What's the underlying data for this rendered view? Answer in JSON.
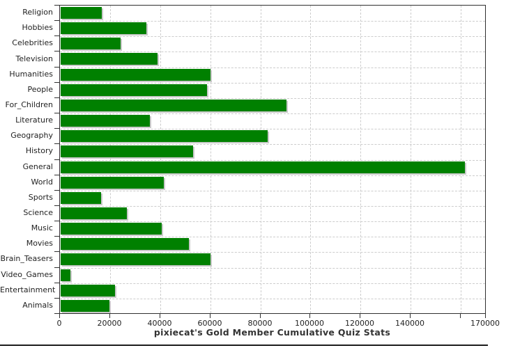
{
  "chart_data": {
    "type": "bar",
    "orientation": "horizontal",
    "title": "pixiecat's Gold Member Cumulative Quiz Stats",
    "categories": [
      "Religion",
      "Hobbies",
      "Celebrities",
      "Television",
      "Humanities",
      "People",
      "For_Children",
      "Literature",
      "Geography",
      "History",
      "General",
      "World",
      "Sports",
      "Science",
      "Music",
      "Movies",
      "Brain_Teasers",
      "Video_Games",
      "Entertainment",
      "Animals"
    ],
    "values": [
      16300,
      34200,
      24000,
      38700,
      59900,
      58500,
      90100,
      35600,
      82700,
      52900,
      161400,
      41200,
      16000,
      26400,
      40300,
      51300,
      59700,
      3800,
      21800,
      19600
    ],
    "xlabel": "",
    "ylabel": "",
    "xlim": [
      0,
      170000
    ],
    "x_ticks": [
      {
        "value": 0,
        "label": "0"
      },
      {
        "value": 20000,
        "label": "20000"
      },
      {
        "value": 40000,
        "label": "40000"
      },
      {
        "value": 60000,
        "label": "60000"
      },
      {
        "value": 80000,
        "label": "80000"
      },
      {
        "value": 100000,
        "label": "100000"
      },
      {
        "value": 120000,
        "label": "120000"
      },
      {
        "value": 140000,
        "label": "140000"
      },
      {
        "value": 160000,
        "label": ""
      },
      {
        "value": 170000,
        "label": "170000"
      }
    ],
    "grid": true,
    "legend": "none",
    "colors": {
      "bar": "#008000",
      "bar_shadow": "#c9c9c9",
      "gridline": "#cccccc",
      "axis": "#2f2f2f",
      "label_text": "#222222",
      "title_text": "#333333",
      "background": "#ffffff"
    }
  }
}
